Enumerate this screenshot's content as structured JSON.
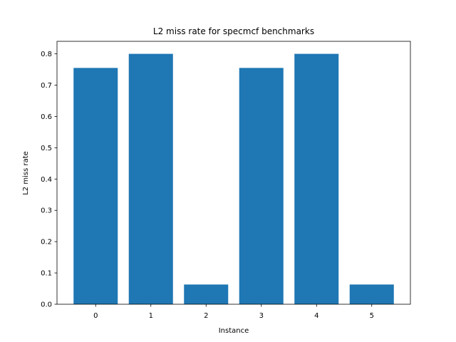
{
  "chart_data": {
    "type": "bar",
    "title": "L2 miss rate for specmcf benchmarks",
    "xlabel": "Instance",
    "ylabel": "L2 miss rate",
    "categories": [
      "0",
      "1",
      "2",
      "3",
      "4",
      "5"
    ],
    "values": [
      0.755,
      0.8,
      0.063,
      0.755,
      0.8,
      0.063
    ],
    "ylim": [
      0,
      0.84
    ],
    "yticks": [
      0.0,
      0.1,
      0.2,
      0.3,
      0.4,
      0.5,
      0.6,
      0.7,
      0.8
    ],
    "ytick_labels": [
      "0.0",
      "0.1",
      "0.2",
      "0.3",
      "0.4",
      "0.5",
      "0.6",
      "0.7",
      "0.8"
    ],
    "bar_color": "#1f77b4",
    "grid": false,
    "legend": "none"
  }
}
